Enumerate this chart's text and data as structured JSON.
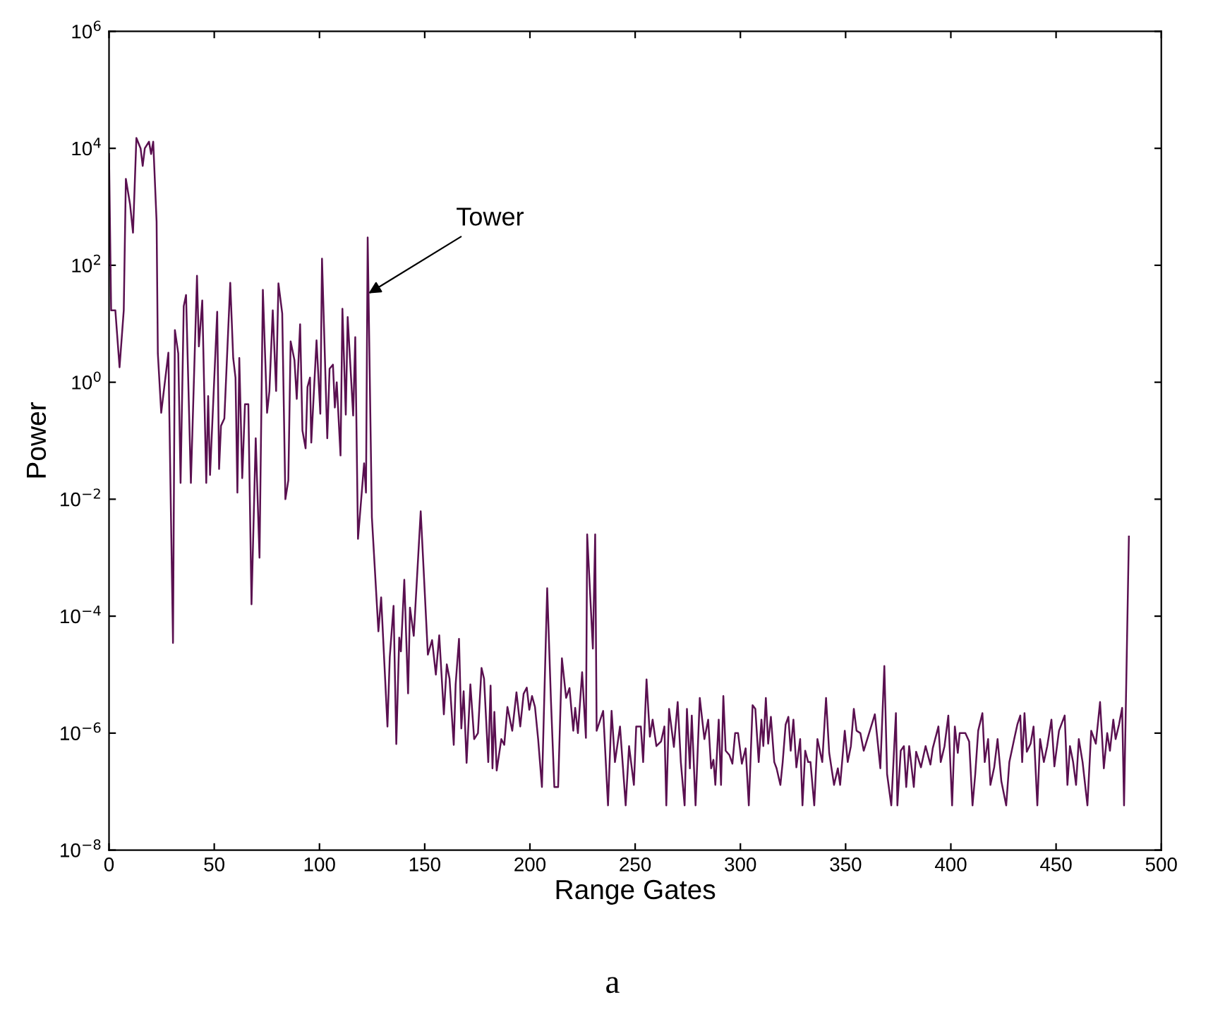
{
  "chart_data": {
    "type": "line",
    "xlabel": "Range Gates",
    "ylabel": "Power",
    "annotations": [
      {
        "text": "Tower",
        "x": 123.3,
        "y": 33
      },
      "a"
    ],
    "log": "y",
    "grid": false,
    "marker": "none",
    "line_style": "solid",
    "xlim": [
      0,
      500
    ],
    "xticks": [
      0,
      50,
      100,
      150,
      200,
      250,
      300,
      350,
      400,
      450,
      500
    ],
    "ylim": [
      1e-08,
      1000000.0
    ],
    "yticks": [
      {
        "value": 1e-08,
        "label": "10$^{−8}$"
      },
      {
        "value": 1e-06,
        "label": "10$^{−6}$"
      },
      {
        "value": 0.0001,
        "label": "10$^{−4}$"
      },
      {
        "value": 0.01,
        "label": "10$^{−2}$"
      },
      {
        "value": 1,
        "label": "10$^{0}$"
      },
      {
        "value": 100,
        "label": "10$^{2}$"
      },
      {
        "value": 10000,
        "label": "10$^{4}$"
      },
      {
        "value": 1000000,
        "label": "10$^{6}$"
      }
    ],
    "series": [
      {
        "color": "#5a1050",
        "x": [
          0,
          1,
          3,
          5,
          7,
          8,
          10,
          11.4,
          13,
          15,
          16,
          17,
          19,
          20,
          21,
          22.6,
          23.2,
          24.8,
          28.2,
          30.4,
          31.3,
          32.9,
          34,
          35.5,
          36.6,
          38.9,
          41.8,
          42.7,
          44.3,
          46.2,
          47.1,
          48,
          51.4,
          52.3,
          53.2,
          54.8,
          57.6,
          59,
          60.1,
          61,
          61.9,
          63.3,
          64.6,
          66.2,
          67.7,
          69.7,
          71.5,
          73.1,
          75.1,
          76.2,
          77.8,
          79.4,
          80.5,
          82.3,
          83.8,
          85.2,
          86.3,
          88.1,
          89.2,
          90.8,
          91.9,
          93.4,
          94.3,
          95.5,
          96.1,
          98.6,
          100.4,
          101.2,
          103.7,
          104.8,
          106.4,
          107.3,
          108.2,
          110,
          110.9,
          112.5,
          113.4,
          116,
          117,
          118.3,
          121.2,
          122.1,
          122.9,
          124.9,
          128,
          129.3,
          132.3,
          133.4,
          135.2,
          136.5,
          137.9,
          138.7,
          140.3,
          142.1,
          143,
          144.8,
          148.1,
          151.5,
          153.5,
          155.3,
          156.9,
          159.1,
          160.5,
          161.8,
          163.8,
          164.7,
          166.3,
          167.4,
          168.5,
          169.9,
          171.7,
          173.5,
          175.3,
          177,
          178.2,
          180.2,
          181.3,
          182.2,
          183.1,
          184.2,
          186.4,
          187.8,
          189.3,
          191.6,
          193.6,
          195.4,
          197,
          198.5,
          199.7,
          201,
          202.4,
          203.9,
          205.7,
          208.2,
          210,
          211.6,
          213.4,
          215.2,
          217.2,
          218.8,
          220.6,
          221.5,
          222.8,
          224.8,
          226.6,
          227.2,
          229.9,
          231,
          231.7,
          234.8,
          237.1,
          238.8,
          240.4,
          242.8,
          245.5,
          247.1,
          249.4,
          250.5,
          252.7,
          253.8,
          255.4,
          257,
          258.3,
          260.1,
          262.3,
          263.9,
          264.8,
          266.1,
          268.4,
          270.2,
          271.7,
          273.5,
          274.6,
          276,
          276.9,
          278.7,
          280.7,
          282.9,
          284.7,
          286.1,
          287.2,
          288.1,
          289.7,
          290.8,
          291.9,
          293,
          294.8,
          296.2,
          297.5,
          298.9,
          300.7,
          302.5,
          304,
          305.8,
          307.1,
          308.7,
          310,
          310.9,
          312.1,
          313.2,
          314.5,
          316.1,
          317.2,
          319,
          320.1,
          321.5,
          322.8,
          323.9,
          325.2,
          326.6,
          328.4,
          329.5,
          330.8,
          332.2,
          333.3,
          335.1,
          336.6,
          338.9,
          340.7,
          342.2,
          344.5,
          346.3,
          347.4,
          349.6,
          351,
          352.5,
          353.9,
          355.2,
          357,
          358.6,
          363.9,
          366.5,
          368.4,
          369.7,
          371.7,
          373.9,
          374.6,
          376.2,
          377.7,
          378.8,
          380.2,
          382.4,
          383.5,
          385.8,
          388,
          390.3,
          391.4,
          394.1,
          395.2,
          397,
          398.8,
          400.6,
          401.9,
          403.3,
          404.2,
          406.9,
          408.7,
          410.3,
          411.6,
          413,
          415,
          416.1,
          417.7,
          418.8,
          420.6,
          422.2,
          424,
          426.3,
          427.8,
          430.1,
          431.6,
          433,
          433.9,
          435,
          436.1,
          437.9,
          439.3,
          441.1,
          442.4,
          444.2,
          445.8,
          447.8,
          449.2,
          451.4,
          454.1,
          455.4,
          456.6,
          458.1,
          459.5,
          460.8,
          462.6,
          464.9,
          466.7,
          468.9,
          470.9,
          472.7,
          474.3,
          475.6,
          477.2,
          478.3,
          479.9,
          481.4,
          482.3,
          484.6
        ],
        "values": [
          8000,
          17,
          17,
          1.8,
          17,
          3000,
          1100,
          360,
          15000,
          10000,
          5000,
          10000,
          13000,
          8000,
          13000,
          560,
          3.1,
          0.3,
          3.2,
          3.5e-05,
          7.8,
          3.1,
          0.019,
          20,
          31,
          0.019,
          66,
          4.1,
          25,
          0.019,
          0.58,
          0.026,
          16,
          0.033,
          0.18,
          0.24,
          50,
          2.6,
          1.2,
          0.013,
          2.6,
          0.023,
          0.42,
          0.42,
          0.00016,
          0.11,
          0.001,
          38,
          0.3,
          0.7,
          17,
          0.71,
          49,
          15,
          0.01,
          0.021,
          5,
          2.4,
          0.52,
          9.8,
          0.15,
          0.074,
          0.83,
          1.2,
          0.093,
          5.2,
          0.29,
          130,
          0.11,
          1.7,
          2,
          0.37,
          1,
          0.056,
          18,
          0.28,
          13,
          0.27,
          5.9,
          0.0021,
          0.041,
          0.013,
          300,
          0.0049,
          5.5e-05,
          0.00021,
          1.3e-06,
          2e-05,
          0.00015,
          6.5e-07,
          4.3e-05,
          2.5e-05,
          0.00042,
          4.8e-06,
          0.00014,
          4.6e-05,
          0.0062,
          2.2e-05,
          3.9e-05,
          1e-05,
          4.7e-05,
          2.1e-06,
          1.5e-05,
          8.5e-06,
          6.3e-07,
          6.8e-06,
          4.1e-05,
          1.2e-06,
          5.2e-06,
          3.1e-07,
          6.8e-06,
          7.9e-07,
          1e-06,
          1.3e-05,
          8.5e-06,
          3.2e-07,
          6.5e-06,
          2.5e-07,
          2.3e-06,
          2.3e-07,
          7.9e-07,
          6.3e-07,
          2.8e-06,
          1.1e-06,
          5e-06,
          1.3e-06,
          4.7e-06,
          6e-06,
          2.5e-06,
          4.3e-06,
          2.8e-06,
          7.9e-07,
          1.2e-07,
          0.0003,
          3.5e-06,
          1.2e-07,
          1.2e-07,
          1.9e-05,
          4e-06,
          5.9e-06,
          1.1e-06,
          2.7e-06,
          1e-06,
          1.1e-05,
          8.3e-07,
          0.0025,
          2.8e-05,
          0.0025,
          1.1e-06,
          2.4e-06,
          5.8e-08,
          2.4e-06,
          3.2e-07,
          1.3e-06,
          5.8e-08,
          6e-07,
          1.3e-07,
          1.3e-06,
          1.3e-06,
          3.2e-07,
          8.3e-06,
          8.7e-07,
          1.7e-06,
          6e-07,
          7.2e-07,
          1.3e-06,
          5.8e-08,
          2.6e-06,
          5.8e-07,
          3.4e-06,
          3.2e-07,
          5.8e-08,
          2.6e-06,
          2.5e-07,
          2e-06,
          5.8e-08,
          4e-06,
          7.9e-07,
          1.7e-06,
          2.5e-07,
          3.5e-07,
          1.3e-07,
          1.7e-06,
          1.3e-07,
          4.3e-06,
          5e-07,
          4.2e-07,
          3e-07,
          1e-06,
          1e-06,
          3e-07,
          5.5e-07,
          5.8e-08,
          3e-06,
          2.6e-06,
          3.2e-07,
          1.7e-06,
          6e-07,
          4e-06,
          6.6e-07,
          1.9e-06,
          3.2e-07,
          2.5e-07,
          1.3e-07,
          3.2e-07,
          1.4e-06,
          1.9e-06,
          5e-07,
          1.7e-06,
          2.6e-07,
          7.9e-07,
          5.8e-08,
          5e-07,
          3.2e-07,
          3.2e-07,
          5.8e-08,
          7.9e-07,
          3.2e-07,
          4e-06,
          4.6e-07,
          1.3e-07,
          2.5e-07,
          1.3e-07,
          1.1e-06,
          3.2e-07,
          6e-07,
          2.6e-06,
          1.1e-06,
          1e-06,
          5e-07,
          2.1e-06,
          2.5e-07,
          1.4e-05,
          2e-07,
          5.8e-08,
          2.2e-06,
          5.8e-08,
          5e-07,
          6e-07,
          1.2e-07,
          6e-07,
          1.2e-07,
          4.8e-07,
          2.6e-07,
          6e-07,
          2.9e-07,
          5.5e-07,
          1.3e-06,
          3.2e-07,
          6e-07,
          2e-06,
          5.8e-08,
          1.3e-06,
          4.6e-07,
          1e-06,
          1e-06,
          7.2e-07,
          5.8e-08,
          2e-07,
          1.1e-06,
          2.2e-06,
          3.2e-07,
          7.9e-07,
          1.3e-07,
          2.6e-07,
          7.9e-07,
          1.5e-07,
          5.8e-08,
          3.2e-07,
          7.9e-07,
          1.4e-06,
          2e-06,
          3.2e-07,
          2.2e-06,
          4.8e-07,
          6.6e-07,
          1.3e-06,
          5.8e-08,
          7.9e-07,
          3.2e-07,
          6e-07,
          1.7e-06,
          2.7e-07,
          1.1e-06,
          2e-06,
          1.3e-07,
          6e-07,
          3.2e-07,
          1.3e-07,
          7.9e-07,
          3.2e-07,
          5.8e-08,
          1.1e-06,
          6.6e-07,
          3.4e-06,
          2.5e-07,
          1e-06,
          5e-07,
          1.7e-06,
          7.9e-07,
          1.4e-06,
          2.7e-06,
          5.8e-08,
          0.0023
        ]
      }
    ]
  }
}
